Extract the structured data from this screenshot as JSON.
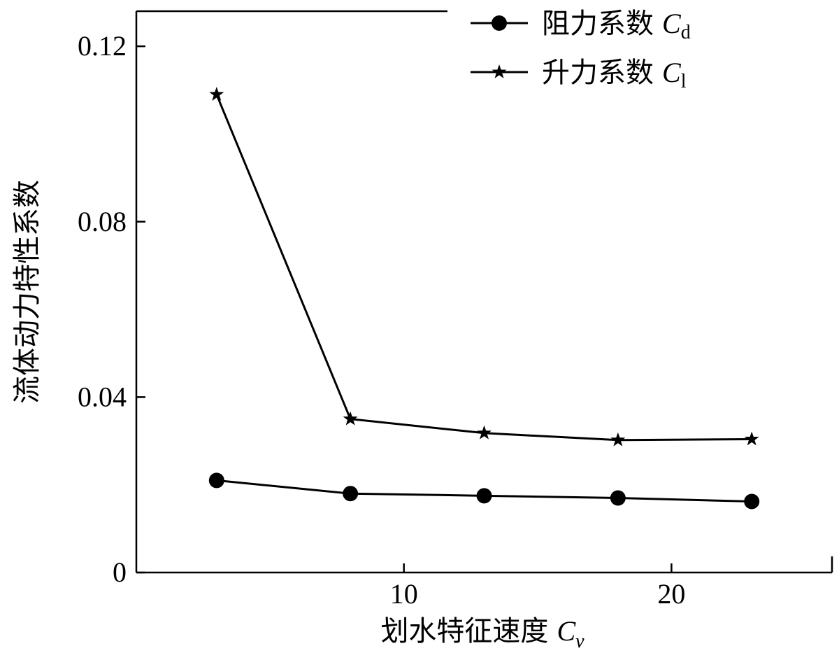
{
  "chart_data": {
    "type": "line",
    "x": [
      3,
      8,
      13,
      18,
      23
    ],
    "series": [
      {
        "name": "阻力系数 Cd",
        "name_text": "阻力系数",
        "name_symbol": "C",
        "name_subscript": "d",
        "marker": "circle",
        "values": [
          0.021,
          0.018,
          0.0175,
          0.017,
          0.0162
        ]
      },
      {
        "name": "升力系数 Cl",
        "name_text": "升力系数",
        "name_symbol": "C",
        "name_subscript": "l",
        "marker": "star",
        "values": [
          0.109,
          0.035,
          0.0318,
          0.0302,
          0.0304
        ]
      }
    ],
    "xlabel": "划水特征速度 Cv",
    "xlabel_text": "划水特征速度",
    "xlabel_symbol": "C",
    "xlabel_subscript": "v",
    "ylabel": "流体动力特性系数",
    "x_ticks": [
      "10",
      "20"
    ],
    "y_ticks": [
      "0",
      "0.04",
      "0.08",
      "0.12"
    ],
    "xlim": [
      0.0,
      26.0
    ],
    "ylim": [
      0,
      0.128
    ],
    "grid": false,
    "legend_position": "top-right",
    "line_color": "#000000"
  }
}
